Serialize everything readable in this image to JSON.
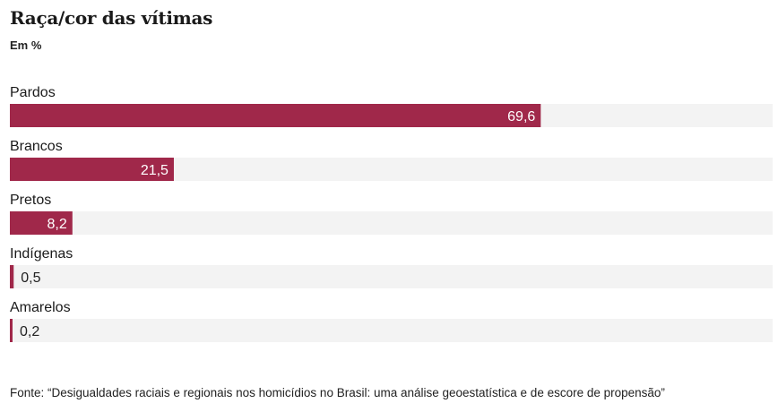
{
  "header": {
    "title": "Raça/cor das vítimas",
    "subtitle": "Em %"
  },
  "chart_data": {
    "type": "bar",
    "orientation": "horizontal",
    "categories": [
      "Pardos",
      "Brancos",
      "Pretos",
      "Indígenas",
      "Amarelos"
    ],
    "values": [
      69.6,
      21.5,
      8.2,
      0.5,
      0.2
    ],
    "value_labels": [
      "69,6",
      "21,5",
      "8,2",
      "0,5",
      "0,2"
    ],
    "xlim": [
      0,
      100
    ],
    "grid": false,
    "legend": "none",
    "colors": {
      "bar": "#a0284a",
      "track": "#f3f3f3",
      "label_inside": "#ffffff",
      "label_outside": "#222222"
    }
  },
  "footer": {
    "source": "Fonte: “Desigualdades raciais e regionais nos homicídios no Brasil: uma análise geoestatística e de escore de propensão”"
  }
}
